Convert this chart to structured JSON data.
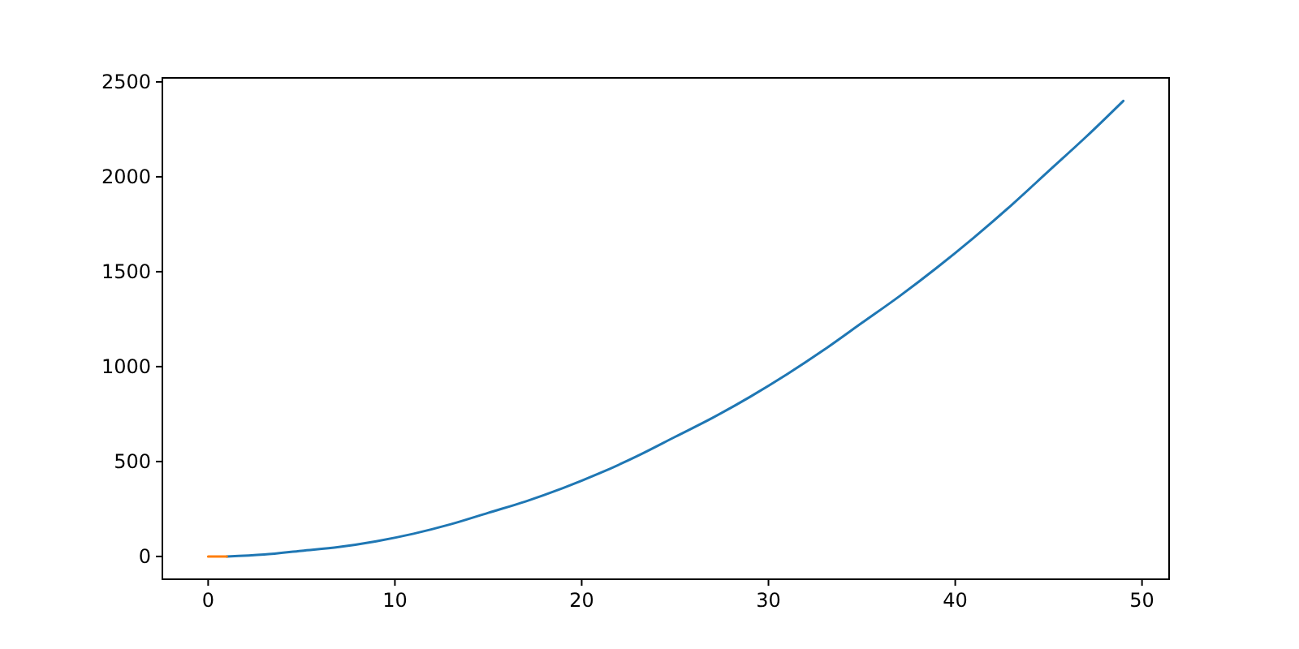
{
  "chart_data": {
    "type": "line",
    "xlim": [
      -2.45,
      51.45
    ],
    "ylim": [
      -120,
      2521
    ],
    "xticks": [
      0,
      10,
      20,
      30,
      40,
      50
    ],
    "yticks": [
      0,
      500,
      1000,
      1500,
      2000,
      2500
    ],
    "grid": false,
    "marker": "none",
    "line_style": "solid",
    "series": [
      {
        "color": "#1f77b4",
        "x": [
          1,
          3,
          5,
          7,
          9,
          11,
          13,
          15,
          17,
          19,
          21,
          23,
          25,
          27,
          29,
          31,
          33,
          35,
          37,
          39,
          41,
          43,
          45,
          47,
          49
        ],
        "values": [
          0,
          10,
          30,
          50,
          80,
          120,
          170,
          230,
          290,
          360,
          440,
          530,
          630,
          730,
          840,
          960,
          1090,
          1230,
          1370,
          1520,
          1680,
          1850,
          2030,
          2210,
          2400
        ]
      },
      {
        "color": "#ff7f0e",
        "x": [
          0,
          1
        ],
        "values": [
          0,
          0
        ]
      }
    ]
  }
}
